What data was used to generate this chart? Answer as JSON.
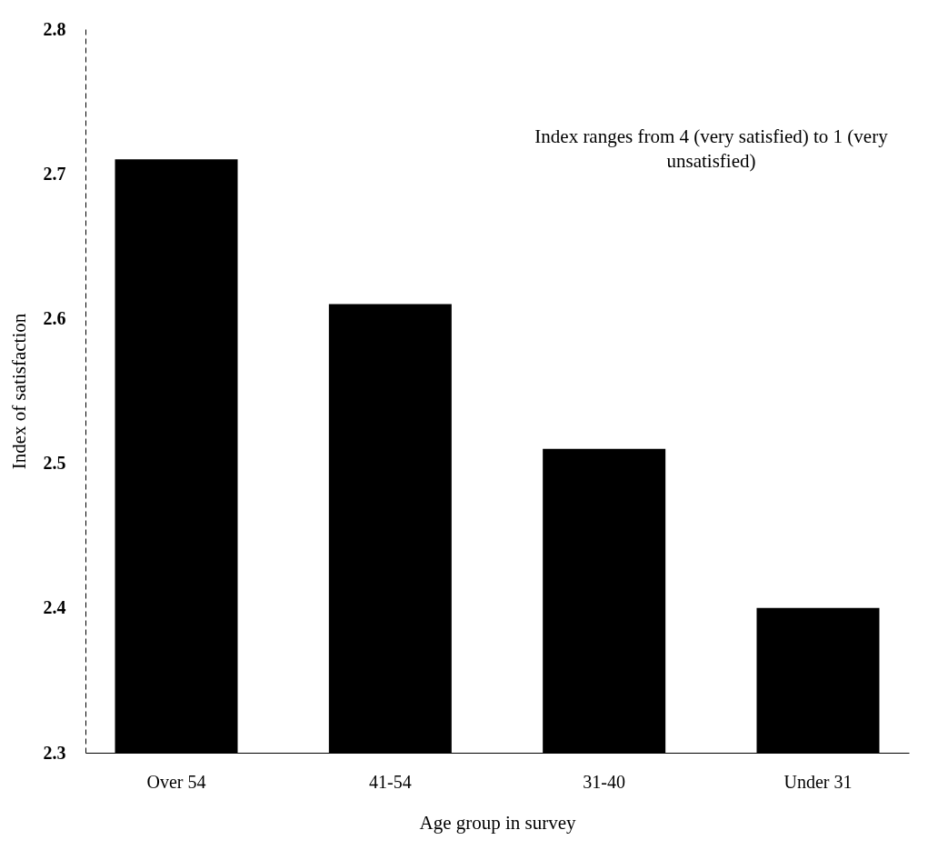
{
  "chart_data": {
    "type": "bar",
    "xlabel": "Age group in survey",
    "ylabel": "Index of satisfaction",
    "categories": [
      "Over 54",
      "41-54",
      "31-40",
      "Under 31"
    ],
    "values": [
      2.71,
      2.61,
      2.51,
      2.4
    ],
    "color": "#000000",
    "ylim": [
      2.3,
      2.8
    ],
    "yticks": [
      2.3,
      2.4,
      2.5,
      2.6,
      2.7,
      2.8
    ],
    "annotations": [
      "Index ranges from 4 (very satisfied) to 1 (very unsatisfied)"
    ]
  }
}
